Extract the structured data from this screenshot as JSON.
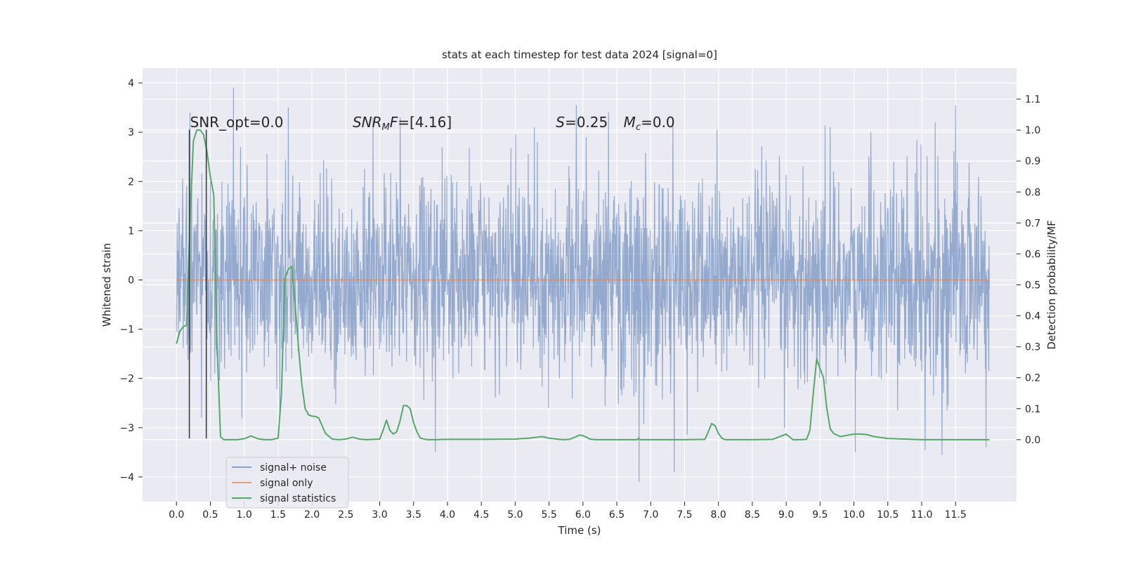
{
  "chart_data": {
    "type": "line",
    "title": "stats at each timestep for test data 2024 [signal=0]",
    "xlabel": "Time (s)",
    "ylabel_left": "Whitened strain",
    "ylabel_right": "Detection probability/MF",
    "xlim": [
      -0.5,
      12.4
    ],
    "ylim_left": [
      -4.5,
      4.3
    ],
    "ylim_right": [
      -0.2,
      1.2
    ],
    "x_ticks": [
      "0.0",
      "0.5",
      "1.0",
      "1.5",
      "2.0",
      "2.5",
      "3.0",
      "3.5",
      "4.0",
      "4.5",
      "5.0",
      "5.5",
      "6.0",
      "6.5",
      "7.0",
      "7.5",
      "8.0",
      "8.5",
      "9.0",
      "9.5",
      "10.0",
      "10.5",
      "11.0",
      "11.5"
    ],
    "y_ticks_left": [
      "4",
      "3",
      "2",
      "1",
      "0",
      "−1",
      "−2",
      "−3",
      "−4"
    ],
    "y_ticks_right": [
      "1.1",
      "1.0",
      "0.9",
      "0.8",
      "0.7",
      "0.6",
      "0.5",
      "0.4",
      "0.3",
      "0.2",
      "0.1",
      "0.0"
    ],
    "grid": true,
    "legend_position": "lower-left",
    "annotations": [
      {
        "text": "SNR_opt=0.0",
        "x": 0.2,
        "y": 3.1
      },
      {
        "html": "<tspan font-style='italic'>SNR</tspan><tspan font-style='italic' font-size='13' dy='4'>M</tspan><tspan font-style='italic' dy='-4'>F</tspan>=[4.16]",
        "x": 2.6,
        "y": 3.1
      },
      {
        "html": "<tspan font-style='italic'>S</tspan>=0.25",
        "x": 5.6,
        "y": 3.1
      },
      {
        "html": "<tspan font-style='italic'>M</tspan><tspan font-style='italic' font-size='13' dy='4'>c</tspan><tspan dy='-4'>=0.0</tspan>",
        "x": 6.6,
        "y": 3.1
      }
    ],
    "vlines": [
      {
        "x": 0.19,
        "y_from": -3.22,
        "y_to": 3.05,
        "color": "#333333"
      },
      {
        "x": 0.44,
        "y_from": -3.22,
        "y_to": 3.05,
        "color": "#333333"
      }
    ],
    "series": [
      {
        "name": "signal+ noise",
        "axis": "left",
        "color": "#4c72b0",
        "opacity": 0.55,
        "style": "noise",
        "x_range": [
          0.0,
          12.0
        ],
        "sigma": 1.0,
        "spikes": [
          [
            0.84,
            3.9
          ],
          [
            1.65,
            3.5
          ],
          [
            2.9,
            3.3
          ],
          [
            3.3,
            3.3
          ],
          [
            5.28,
            3.1
          ],
          [
            5.9,
            3.55
          ],
          [
            6.38,
            3.4
          ],
          [
            6.05,
            2.9
          ],
          [
            7.98,
            3.05
          ],
          [
            9.65,
            3.1
          ],
          [
            10.25,
            3.0
          ],
          [
            11.5,
            3.55
          ],
          [
            11.2,
            3.2
          ],
          [
            3.82,
            -3.5
          ],
          [
            6.83,
            -4.1
          ],
          [
            7.35,
            -3.9
          ],
          [
            10.02,
            -3.5
          ],
          [
            11.05,
            -3.45
          ],
          [
            11.3,
            -3.55
          ],
          [
            11.95,
            -3.4
          ],
          [
            0.2,
            3.4
          ]
        ]
      },
      {
        "name": "signal only",
        "axis": "left",
        "color": "#dd8452",
        "opacity": 0.7,
        "style": "line",
        "x": [
          0.0,
          12.0
        ],
        "y": [
          0.0,
          0.0
        ]
      },
      {
        "name": "signal statistics",
        "axis": "right",
        "color": "#55a868",
        "opacity": 1.0,
        "style": "line",
        "x": [
          0.0,
          0.05,
          0.1,
          0.15,
          0.2,
          0.25,
          0.3,
          0.35,
          0.4,
          0.45,
          0.5,
          0.55,
          0.6,
          0.65,
          0.7,
          0.8,
          0.9,
          1.0,
          1.1,
          1.2,
          1.3,
          1.4,
          1.5,
          1.55,
          1.6,
          1.65,
          1.7,
          1.75,
          1.8,
          1.85,
          1.9,
          1.95,
          2.0,
          2.05,
          2.1,
          2.2,
          2.3,
          2.4,
          2.5,
          2.6,
          2.7,
          2.8,
          2.9,
          3.0,
          3.05,
          3.1,
          3.15,
          3.2,
          3.25,
          3.3,
          3.35,
          3.4,
          3.45,
          3.5,
          3.55,
          3.6,
          3.7,
          3.8,
          4.0,
          4.5,
          5.0,
          5.2,
          5.4,
          5.5,
          5.7,
          5.8,
          5.9,
          5.95,
          6.0,
          6.05,
          6.1,
          6.2,
          6.5,
          6.8,
          6.82,
          6.84,
          7.0,
          7.5,
          7.8,
          7.85,
          7.9,
          7.95,
          8.0,
          8.05,
          8.1,
          8.2,
          8.5,
          8.8,
          9.0,
          9.1,
          9.2,
          9.3,
          9.35,
          9.4,
          9.45,
          9.5,
          9.55,
          9.6,
          9.65,
          9.7,
          9.8,
          9.9,
          10.0,
          10.1,
          10.2,
          10.3,
          10.5,
          11.0,
          11.5,
          12.0
        ],
        "y": [
          0.31,
          0.35,
          0.365,
          0.37,
          0.71,
          0.965,
          1.0,
          1.0,
          0.985,
          0.93,
          0.85,
          0.79,
          0.3,
          0.01,
          0.0,
          0.0,
          0.0,
          0.003,
          0.012,
          0.003,
          0.0,
          0.0,
          0.005,
          0.15,
          0.52,
          0.55,
          0.56,
          0.44,
          0.3,
          0.18,
          0.1,
          0.08,
          0.076,
          0.075,
          0.07,
          0.02,
          0.002,
          0.0,
          0.002,
          0.008,
          0.002,
          0.0,
          0.001,
          0.002,
          0.03,
          0.063,
          0.03,
          0.018,
          0.025,
          0.06,
          0.11,
          0.11,
          0.1,
          0.055,
          0.025,
          0.005,
          0.0,
          0.0,
          0.001,
          0.001,
          0.002,
          0.005,
          0.01,
          0.005,
          0.0,
          0.001,
          0.01,
          0.015,
          0.013,
          0.008,
          0.002,
          0.0,
          0.0,
          0.0,
          0.005,
          0.0,
          0.0,
          0.0,
          0.001,
          0.025,
          0.052,
          0.045,
          0.02,
          0.005,
          0.0,
          0.0,
          0.0,
          0.001,
          0.018,
          0.0,
          0.0,
          0.001,
          0.03,
          0.15,
          0.26,
          0.23,
          0.2,
          0.1,
          0.035,
          0.02,
          0.01,
          0.014,
          0.018,
          0.018,
          0.016,
          0.01,
          0.004,
          0.0,
          0.0,
          0.0
        ]
      }
    ]
  }
}
